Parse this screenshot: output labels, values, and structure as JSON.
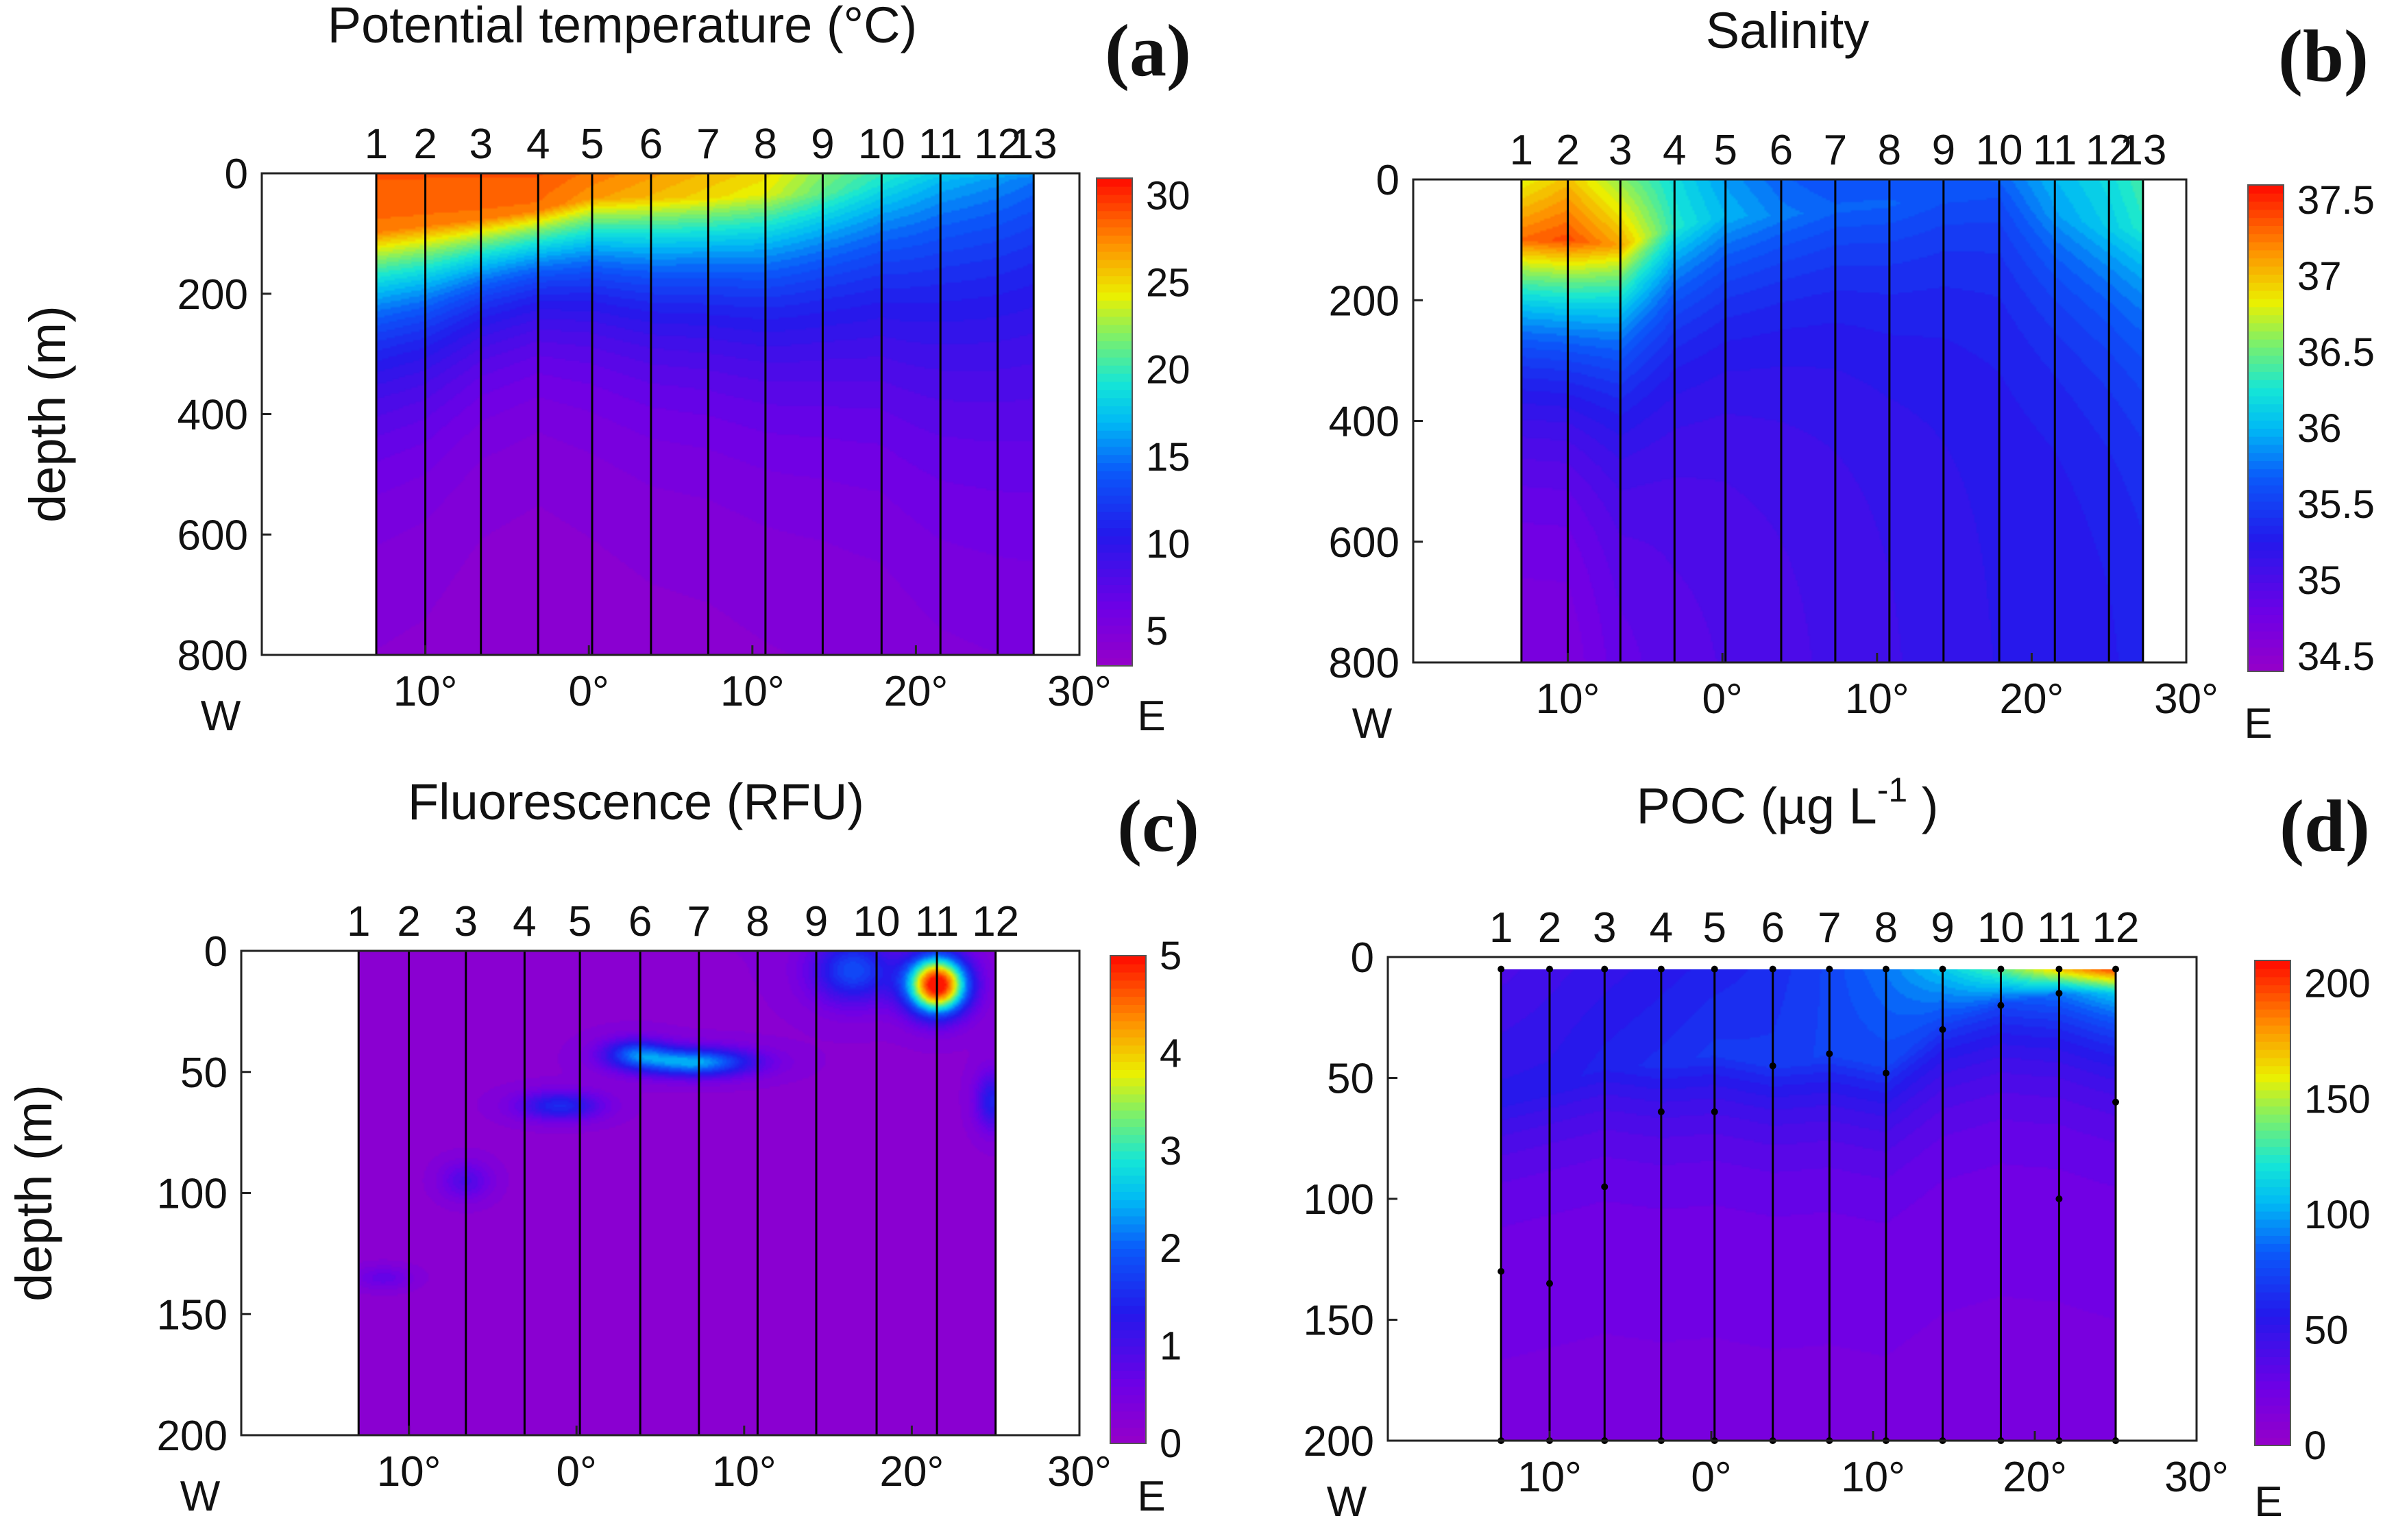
{
  "chart_data": [
    {
      "type": "heatmap",
      "panel_label": "(a)",
      "title": "Potential temperature (°C)",
      "ylabel": "depth (m)",
      "xlabel": "",
      "x_axis": {
        "left_label": "W",
        "right_label": "E",
        "ticks": [
          "10°",
          "0°",
          "10°",
          "20°",
          "30°"
        ],
        "tick_lon": [
          -10,
          0,
          10,
          20,
          30
        ],
        "xlim": [
          -20,
          30
        ]
      },
      "ylim": [
        800,
        0
      ],
      "yticks": [
        0,
        200,
        400,
        600,
        800
      ],
      "stations": {
        "labels": [
          "1",
          "2",
          "3",
          "4",
          "5",
          "6",
          "7",
          "8",
          "9",
          "10",
          "11",
          "12",
          "13"
        ],
        "lon": [
          -13.0,
          -10.0,
          -6.6,
          -3.1,
          0.2,
          3.8,
          7.3,
          10.8,
          14.3,
          17.9,
          21.5,
          25.0,
          27.2
        ]
      },
      "data_extent": {
        "lon": [
          -13.0,
          27.2
        ],
        "depth": [
          0,
          800
        ]
      },
      "colorbar": {
        "range": [
          3,
          31
        ],
        "ticks": [
          5,
          10,
          15,
          20,
          25,
          30
        ],
        "tick_labels": [
          "5",
          "10",
          "15",
          "20",
          "25",
          "30"
        ]
      },
      "surface_value": [
        29,
        29,
        29,
        29,
        28,
        27,
        26,
        25,
        22,
        20,
        18,
        17,
        16
      ],
      "deep_value": 4,
      "mixed_layer_depth_m": [
        95,
        85,
        75,
        60,
        40,
        40,
        40,
        35,
        35,
        20,
        15,
        10,
        10
      ],
      "decay_scale_m": [
        170,
        160,
        130,
        120,
        140,
        160,
        170,
        190,
        210,
        240,
        300,
        330,
        350
      ]
    },
    {
      "type": "heatmap",
      "panel_label": "(b)",
      "title": "Salinity",
      "ylabel": "",
      "xlabel": "",
      "x_axis": {
        "left_label": "W",
        "right_label": "E",
        "ticks": [
          "10°",
          "0°",
          "10°",
          "20°",
          "30°"
        ],
        "tick_lon": [
          -10,
          0,
          10,
          20,
          30
        ],
        "xlim": [
          -20,
          30
        ]
      },
      "ylim": [
        800,
        0
      ],
      "yticks": [
        0,
        200,
        400,
        600,
        800
      ],
      "stations": {
        "labels": [
          "1",
          "2",
          "3",
          "4",
          "5",
          "6",
          "7",
          "8",
          "9",
          "10",
          "11",
          "12",
          "13"
        ],
        "lon": [
          -13.0,
          -10.0,
          -6.6,
          -3.1,
          0.2,
          3.8,
          7.3,
          10.8,
          14.3,
          17.9,
          21.5,
          25.0,
          27.2
        ]
      },
      "data_extent": {
        "lon": [
          -13.0,
          27.2
        ],
        "depth": [
          0,
          800
        ]
      },
      "colorbar": {
        "range": [
          34.4,
          37.6
        ],
        "ticks": [
          34.5,
          35,
          35.5,
          36,
          36.5,
          37,
          37.5
        ],
        "tick_labels": [
          "34.5",
          "35",
          "35.5",
          "36",
          "36.5",
          "37",
          "37.5"
        ]
      },
      "surface_value": [
        36.8,
        37.0,
        36.6,
        36.2,
        35.9,
        35.7,
        35.6,
        35.6,
        35.6,
        35.7,
        36.0,
        36.2,
        36.4
      ],
      "core_value": [
        37.3,
        37.4,
        37.1,
        36.3,
        36.0,
        35.8,
        35.7,
        35.7,
        35.6,
        35.6,
        35.9,
        36.1,
        36.3
      ],
      "core_depth_m": [
        100,
        100,
        110,
        80,
        60,
        60,
        50,
        40,
        40,
        30,
        60,
        80,
        80
      ],
      "deep_value": [
        34.6,
        34.6,
        34.8,
        34.9,
        34.95,
        35.0,
        35.05,
        35.1,
        35.15,
        35.2,
        35.2,
        35.25,
        35.3
      ]
    },
    {
      "type": "heatmap",
      "panel_label": "(c)",
      "title": "Fluorescence (RFU)",
      "ylabel": "depth (m)",
      "xlabel": "",
      "x_axis": {
        "left_label": "W",
        "right_label": "E",
        "ticks": [
          "10°",
          "0°",
          "10°",
          "20°",
          "30°"
        ],
        "tick_lon": [
          -10,
          0,
          10,
          20,
          30
        ],
        "xlim": [
          -20,
          30
        ]
      },
      "ylim": [
        200,
        0
      ],
      "yticks": [
        0,
        50,
        100,
        150,
        200
      ],
      "ytick_labels": [
        "0",
        "50",
        "100",
        "150",
        "200"
      ],
      "stations": {
        "labels": [
          "1",
          "2",
          "3",
          "4",
          "5",
          "6",
          "7",
          "8",
          "9",
          "10",
          "11",
          "12"
        ],
        "lon": [
          -13.0,
          -10.0,
          -6.6,
          -3.1,
          0.2,
          3.8,
          7.3,
          10.8,
          14.3,
          17.9,
          21.5,
          25.0
        ]
      },
      "data_extent": {
        "lon": [
          -13.0,
          25.0
        ],
        "depth": [
          0,
          200
        ]
      },
      "colorbar": {
        "range": [
          0,
          5
        ],
        "ticks": [
          0,
          1,
          2,
          3,
          4,
          5
        ],
        "tick_labels": [
          "0",
          "1",
          "2",
          "3",
          "4",
          "5"
        ]
      },
      "background_value": 0.25,
      "maxima": [
        {
          "lon": 21.5,
          "depth": 14,
          "value": 5.0,
          "lon_width": 1.8,
          "depth_width": 12
        },
        {
          "lon": 16.5,
          "depth": 8,
          "value": 1.6,
          "lon_width": 2.5,
          "depth_width": 14
        },
        {
          "lon": 7.0,
          "depth": 46,
          "value": 2.2,
          "lon_width": 3.6,
          "depth_width": 6
        },
        {
          "lon": 3.5,
          "depth": 42,
          "value": 1.4,
          "lon_width": 2.0,
          "depth_width": 6
        },
        {
          "lon": -1.0,
          "depth": 64,
          "value": 1.3,
          "lon_width": 2.5,
          "depth_width": 6
        },
        {
          "lon": -6.6,
          "depth": 95,
          "value": 0.7,
          "lon_width": 1.5,
          "depth_width": 8
        },
        {
          "lon": -11.5,
          "depth": 135,
          "value": 0.5,
          "lon_width": 1.8,
          "depth_width": 5
        },
        {
          "lon": 24.8,
          "depth": 62,
          "value": 1.2,
          "lon_width": 1.0,
          "depth_width": 12
        }
      ]
    },
    {
      "type": "heatmap",
      "panel_label": "(d)",
      "title": "POC (µg L",
      "title_superscript": "-1",
      "title_suffix": " )",
      "ylabel": "",
      "xlabel": "",
      "x_axis": {
        "left_label": "W",
        "right_label": "E",
        "ticks": [
          "10°",
          "0°",
          "10°",
          "20°",
          "30°"
        ],
        "tick_lon": [
          -10,
          0,
          10,
          20,
          30
        ],
        "xlim": [
          -20,
          30
        ]
      },
      "ylim": [
        200,
        0
      ],
      "yticks": [
        0,
        50,
        100,
        150,
        200
      ],
      "ytick_labels": [
        "0",
        "50",
        "100",
        "150",
        "200"
      ],
      "stations": {
        "labels": [
          "1",
          "2",
          "3",
          "4",
          "5",
          "6",
          "7",
          "8",
          "9",
          "10",
          "11",
          "12"
        ],
        "lon": [
          -13.0,
          -10.0,
          -6.6,
          -3.1,
          0.2,
          3.8,
          7.3,
          10.8,
          14.3,
          17.9,
          21.5,
          25.0
        ]
      },
      "data_extent": {
        "lon": [
          -13.0,
          25.0
        ],
        "depth": [
          5,
          200
        ]
      },
      "colorbar": {
        "range": [
          0,
          210
        ],
        "ticks": [
          0,
          50,
          100,
          150,
          200
        ],
        "tick_labels": [
          "0",
          "50",
          "100",
          "150",
          "200"
        ]
      },
      "surface_value": [
        40,
        45,
        50,
        55,
        60,
        65,
        75,
        90,
        110,
        135,
        170,
        200
      ],
      "subsurface_value": [
        55,
        55,
        60,
        65,
        70,
        70,
        75,
        75,
        70,
        75,
        90,
        110
      ],
      "subsurface_depth_m": [
        60,
        55,
        45,
        45,
        40,
        45,
        40,
        45,
        30,
        20,
        15,
        15
      ],
      "deep_value": 20,
      "sample_points": [
        {
          "lon": -13.0,
          "depth": 5
        },
        {
          "lon": -10.0,
          "depth": 5
        },
        {
          "lon": -6.6,
          "depth": 5
        },
        {
          "lon": -3.1,
          "depth": 5
        },
        {
          "lon": 0.2,
          "depth": 5
        },
        {
          "lon": 3.8,
          "depth": 5
        },
        {
          "lon": 7.3,
          "depth": 5
        },
        {
          "lon": 10.8,
          "depth": 5
        },
        {
          "lon": 14.3,
          "depth": 5
        },
        {
          "lon": 17.9,
          "depth": 5
        },
        {
          "lon": 21.5,
          "depth": 5
        },
        {
          "lon": 25.0,
          "depth": 5
        },
        {
          "lon": 17.9,
          "depth": 20
        },
        {
          "lon": 21.5,
          "depth": 15
        },
        {
          "lon": 14.3,
          "depth": 30
        },
        {
          "lon": 7.3,
          "depth": 40
        },
        {
          "lon": 3.8,
          "depth": 45
        },
        {
          "lon": 10.8,
          "depth": 48
        },
        {
          "lon": 25.0,
          "depth": 60
        },
        {
          "lon": -3.1,
          "depth": 64
        },
        {
          "lon": 0.2,
          "depth": 64
        },
        {
          "lon": -6.6,
          "depth": 95
        },
        {
          "lon": 21.5,
          "depth": 100
        },
        {
          "lon": -13.0,
          "depth": 130
        },
        {
          "lon": -10.0,
          "depth": 135
        },
        {
          "lon": -13.0,
          "depth": 200
        },
        {
          "lon": -10.0,
          "depth": 200
        },
        {
          "lon": -6.6,
          "depth": 200
        },
        {
          "lon": -3.1,
          "depth": 200
        },
        {
          "lon": 0.2,
          "depth": 200
        },
        {
          "lon": 3.8,
          "depth": 200
        },
        {
          "lon": 7.3,
          "depth": 200
        },
        {
          "lon": 10.8,
          "depth": 200
        },
        {
          "lon": 14.3,
          "depth": 200
        },
        {
          "lon": 17.9,
          "depth": 200
        },
        {
          "lon": 21.5,
          "depth": 200
        },
        {
          "lon": 25.0,
          "depth": 200
        }
      ]
    }
  ]
}
